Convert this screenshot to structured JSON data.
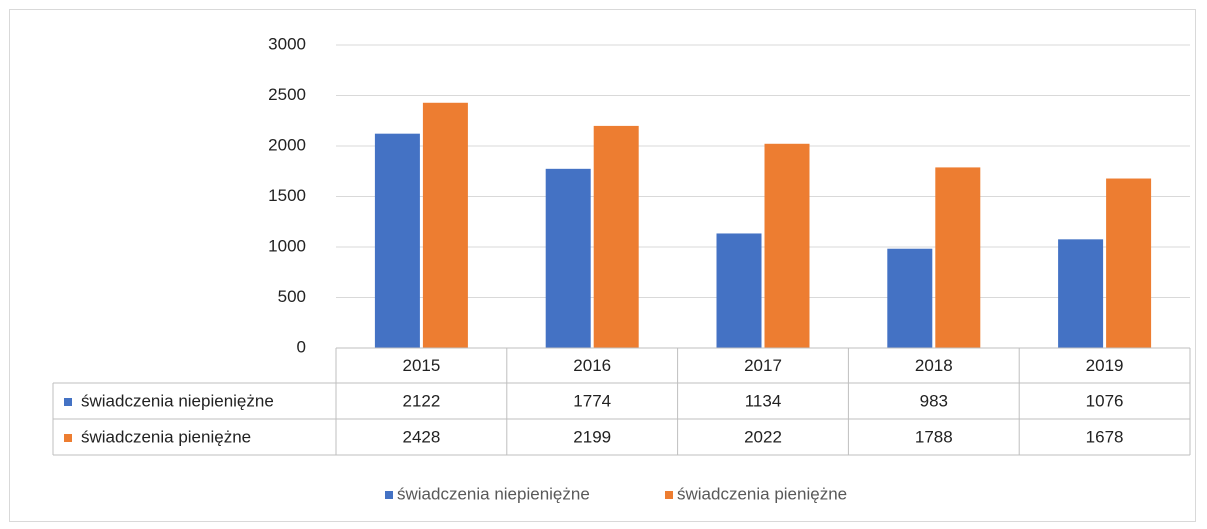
{
  "chart_data": {
    "type": "bar",
    "categories": [
      "2015",
      "2016",
      "2017",
      "2018",
      "2019"
    ],
    "series": [
      {
        "name": "świadczenia niepieniężne",
        "color": "#4472c4",
        "values": [
          2122,
          1774,
          1134,
          983,
          1076
        ]
      },
      {
        "name": "świadczenia pieniężne",
        "color": "#ed7d31",
        "values": [
          2428,
          2199,
          2022,
          1788,
          1678
        ]
      }
    ],
    "ylim": [
      0,
      3000
    ],
    "yticks": [
      0,
      500,
      1000,
      1500,
      2000,
      2500,
      3000
    ],
    "grid": true,
    "data_table": true,
    "legend": "bottom"
  }
}
